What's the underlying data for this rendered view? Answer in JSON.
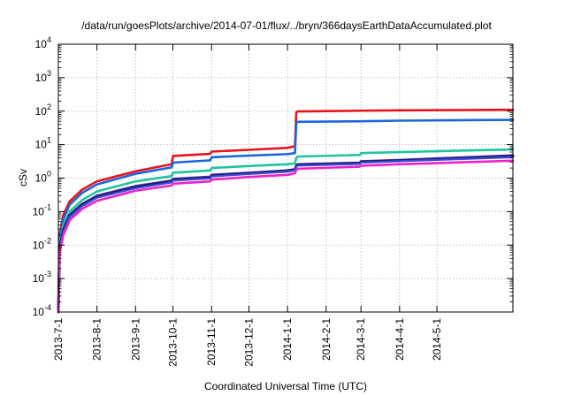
{
  "chart_data": {
    "type": "line",
    "title": "/data/run/goesPlots/archive/2014-07-01/flux/../bryn/366daysEarthDataAccumulated.plot",
    "xlabel": "Coordinated Universal Time (UTC)",
    "ylabel": "cSv",
    "y_scale": "log",
    "ylim": [
      0.0001,
      10000
    ],
    "xlim": [
      "2013-07-01",
      "2014-07-01"
    ],
    "grid": true,
    "legend": "none",
    "x_ticks": [
      "2013-7-1",
      "2013-8-1",
      "2013-9-1",
      "2013-10-1",
      "2013-11-1",
      "2013-12-1",
      "2014-1-1",
      "2014-2-1",
      "2014-3-1",
      "2014-4-1",
      "2014-5-1"
    ],
    "y_ticks": [
      {
        "base": "10",
        "exp": "-4"
      },
      {
        "base": "10",
        "exp": "-3"
      },
      {
        "base": "10",
        "exp": "-2"
      },
      {
        "base": "10",
        "exp": "-1"
      },
      {
        "base": "10",
        "exp": "0"
      },
      {
        "base": "10",
        "exp": "1"
      },
      {
        "base": "10",
        "exp": "2"
      },
      {
        "base": "10",
        "exp": "3"
      },
      {
        "base": "10",
        "exp": "4"
      }
    ],
    "series": [
      {
        "color": "#e8141b",
        "width": 2.6,
        "points": [
          [
            "2013-07-01",
            0.0001
          ],
          [
            "2013-07-02",
            0.02
          ],
          [
            "2013-07-05",
            0.08
          ],
          [
            "2013-07-10",
            0.2
          ],
          [
            "2013-07-20",
            0.45
          ],
          [
            "2013-08-01",
            0.8
          ],
          [
            "2013-09-01",
            1.6
          ],
          [
            "2013-09-30",
            2.6
          ],
          [
            "2013-10-01",
            4.6
          ],
          [
            "2013-10-31",
            5.3
          ],
          [
            "2013-11-01",
            6.2
          ],
          [
            "2013-12-01",
            7.0
          ],
          [
            "2014-01-01",
            8.0
          ],
          [
            "2014-01-07",
            9.0
          ],
          [
            "2014-01-08",
            90
          ],
          [
            "2014-01-09",
            98
          ],
          [
            "2014-03-01",
            103
          ],
          [
            "2014-04-01",
            106
          ],
          [
            "2014-07-01",
            110
          ]
        ]
      },
      {
        "color": "#1a66e0",
        "width": 2.6,
        "points": [
          [
            "2013-07-01",
            0.0001
          ],
          [
            "2013-07-02",
            0.015
          ],
          [
            "2013-07-05",
            0.06
          ],
          [
            "2013-07-10",
            0.16
          ],
          [
            "2013-07-20",
            0.36
          ],
          [
            "2013-08-01",
            0.65
          ],
          [
            "2013-09-01",
            1.35
          ],
          [
            "2013-09-30",
            2.1
          ],
          [
            "2013-10-01",
            2.9
          ],
          [
            "2013-10-31",
            3.4
          ],
          [
            "2013-11-01",
            4.2
          ],
          [
            "2013-12-01",
            4.7
          ],
          [
            "2014-01-01",
            5.2
          ],
          [
            "2014-01-07",
            5.6
          ],
          [
            "2014-01-08",
            44
          ],
          [
            "2014-01-09",
            48
          ],
          [
            "2014-03-01",
            50
          ],
          [
            "2014-04-01",
            52
          ],
          [
            "2014-07-01",
            55
          ]
        ]
      },
      {
        "color": "#21c4a0",
        "width": 2.6,
        "points": [
          [
            "2013-07-01",
            0.0001
          ],
          [
            "2013-07-02",
            0.01
          ],
          [
            "2013-07-05",
            0.04
          ],
          [
            "2013-07-10",
            0.1
          ],
          [
            "2013-07-20",
            0.22
          ],
          [
            "2013-08-01",
            0.4
          ],
          [
            "2013-09-01",
            0.8
          ],
          [
            "2013-09-30",
            1.15
          ],
          [
            "2013-10-01",
            1.45
          ],
          [
            "2013-10-31",
            1.7
          ],
          [
            "2013-11-01",
            2.0
          ],
          [
            "2013-12-01",
            2.3
          ],
          [
            "2014-01-01",
            2.6
          ],
          [
            "2014-01-07",
            2.75
          ],
          [
            "2014-01-08",
            4.0
          ],
          [
            "2014-01-09",
            4.4
          ],
          [
            "2014-02-28",
            4.9
          ],
          [
            "2014-03-01",
            5.6
          ],
          [
            "2014-04-01",
            6.0
          ],
          [
            "2014-07-01",
            7.2
          ]
        ]
      },
      {
        "color": "#6e3fb5",
        "width": 2.6,
        "points": [
          [
            "2013-07-01",
            0.0001
          ],
          [
            "2013-07-02",
            0.008
          ],
          [
            "2013-07-05",
            0.03
          ],
          [
            "2013-07-10",
            0.08
          ],
          [
            "2013-07-20",
            0.17
          ],
          [
            "2013-08-01",
            0.3
          ],
          [
            "2013-09-01",
            0.58
          ],
          [
            "2013-09-30",
            0.85
          ],
          [
            "2013-10-01",
            0.95
          ],
          [
            "2013-10-31",
            1.1
          ],
          [
            "2013-11-01",
            1.25
          ],
          [
            "2013-12-01",
            1.45
          ],
          [
            "2014-01-01",
            1.7
          ],
          [
            "2014-01-07",
            1.85
          ],
          [
            "2014-01-08",
            2.4
          ],
          [
            "2014-01-09",
            2.6
          ],
          [
            "2014-02-28",
            2.9
          ],
          [
            "2014-03-01",
            3.2
          ],
          [
            "2014-04-01",
            3.5
          ],
          [
            "2014-07-01",
            4.8
          ]
        ]
      },
      {
        "color": "#1b1b6e",
        "width": 3.0,
        "points": [
          [
            "2013-07-01",
            0.0001
          ],
          [
            "2013-07-02",
            0.008
          ],
          [
            "2013-07-05",
            0.028
          ],
          [
            "2013-07-10",
            0.075
          ],
          [
            "2013-07-20",
            0.16
          ],
          [
            "2013-08-01",
            0.28
          ],
          [
            "2013-09-01",
            0.55
          ],
          [
            "2013-09-30",
            0.8
          ],
          [
            "2013-10-01",
            0.9
          ],
          [
            "2013-10-31",
            1.05
          ],
          [
            "2013-11-01",
            1.2
          ],
          [
            "2013-12-01",
            1.4
          ],
          [
            "2014-01-01",
            1.65
          ],
          [
            "2014-01-07",
            1.8
          ],
          [
            "2014-01-08",
            2.3
          ],
          [
            "2014-01-09",
            2.5
          ],
          [
            "2014-02-28",
            2.8
          ],
          [
            "2014-03-01",
            3.05
          ],
          [
            "2014-04-01",
            3.35
          ],
          [
            "2014-07-01",
            4.5
          ]
        ]
      },
      {
        "color": "#3b4bd6",
        "width": 2.2,
        "points": [
          [
            "2013-07-01",
            0.0001
          ],
          [
            "2013-07-02",
            0.007
          ],
          [
            "2013-07-05",
            0.025
          ],
          [
            "2013-07-10",
            0.068
          ],
          [
            "2013-07-20",
            0.145
          ],
          [
            "2013-08-01",
            0.26
          ],
          [
            "2013-09-01",
            0.5
          ],
          [
            "2013-09-30",
            0.74
          ],
          [
            "2013-10-01",
            0.84
          ],
          [
            "2013-10-31",
            0.98
          ],
          [
            "2013-11-01",
            1.12
          ],
          [
            "2013-12-01",
            1.32
          ],
          [
            "2014-01-01",
            1.55
          ],
          [
            "2014-01-07",
            1.7
          ],
          [
            "2014-01-08",
            2.2
          ],
          [
            "2014-01-09",
            2.35
          ],
          [
            "2014-02-28",
            2.65
          ],
          [
            "2014-03-01",
            2.9
          ],
          [
            "2014-04-01",
            3.2
          ],
          [
            "2014-07-01",
            4.2
          ]
        ]
      },
      {
        "color": "#ee22c8",
        "width": 2.6,
        "points": [
          [
            "2013-07-01",
            0.0001
          ],
          [
            "2013-07-02",
            0.006
          ],
          [
            "2013-07-05",
            0.02
          ],
          [
            "2013-07-10",
            0.055
          ],
          [
            "2013-07-20",
            0.12
          ],
          [
            "2013-08-01",
            0.21
          ],
          [
            "2013-09-01",
            0.42
          ],
          [
            "2013-09-30",
            0.6
          ],
          [
            "2013-10-01",
            0.68
          ],
          [
            "2013-10-31",
            0.8
          ],
          [
            "2013-11-01",
            0.9
          ],
          [
            "2013-12-01",
            1.08
          ],
          [
            "2014-01-01",
            1.25
          ],
          [
            "2014-01-07",
            1.4
          ],
          [
            "2014-01-08",
            1.75
          ],
          [
            "2014-01-09",
            1.9
          ],
          [
            "2014-02-28",
            2.2
          ],
          [
            "2014-03-01",
            2.35
          ],
          [
            "2014-04-01",
            2.6
          ],
          [
            "2014-07-01",
            3.3
          ]
        ]
      }
    ]
  }
}
